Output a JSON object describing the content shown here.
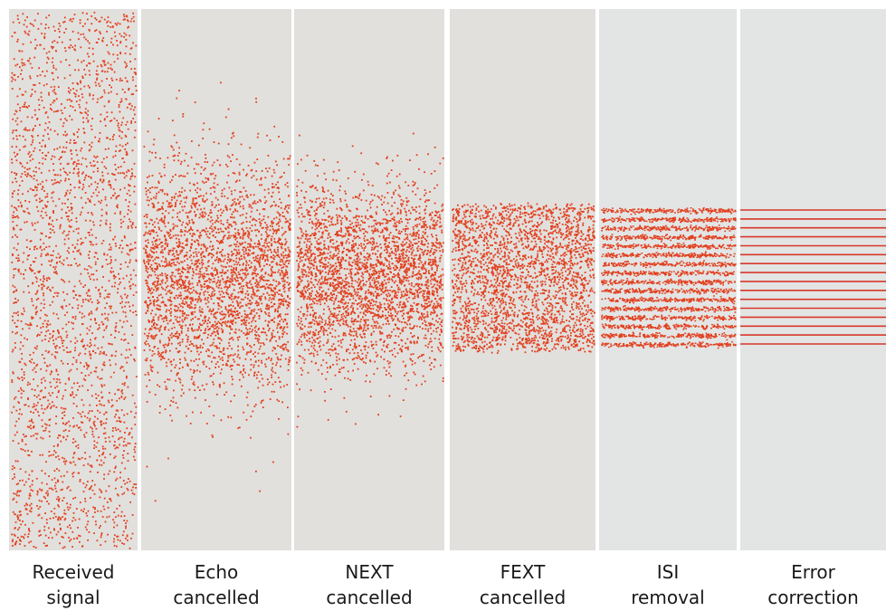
{
  "colors": {
    "signal_point": "#e2401f",
    "signal_line": "#d8372a",
    "panel_background": "#e2e0dd",
    "panel_background_cool": "#e3e5e5",
    "label_text": "#1a1a1a"
  },
  "stages": [
    {
      "id": "received-signal",
      "label_line1": "Received",
      "label_line2": "signal",
      "spread": 1.0,
      "display": "scattered points"
    },
    {
      "id": "echo-cancelled",
      "label_line1": "Echo",
      "label_line2": "cancelled",
      "spread": 0.52,
      "display": "scattered points"
    },
    {
      "id": "next-cancelled",
      "label_line1": "NEXT",
      "label_line2": "cancelled",
      "spread": 0.4,
      "display": "scattered points"
    },
    {
      "id": "fext-cancelled",
      "label_line1": "FEXT",
      "label_line2": "cancelled",
      "spread": 0.27,
      "display": "scattered points"
    },
    {
      "id": "isi-removal",
      "label_line1": "ISI",
      "label_line2": "removal",
      "spread": 0.25,
      "display": "clustered levels",
      "levels": 16
    },
    {
      "id": "error-correction",
      "label_line1": "Error",
      "label_line2": "correction",
      "spread": 0.25,
      "display": "clean levels",
      "levels": 16
    }
  ]
}
